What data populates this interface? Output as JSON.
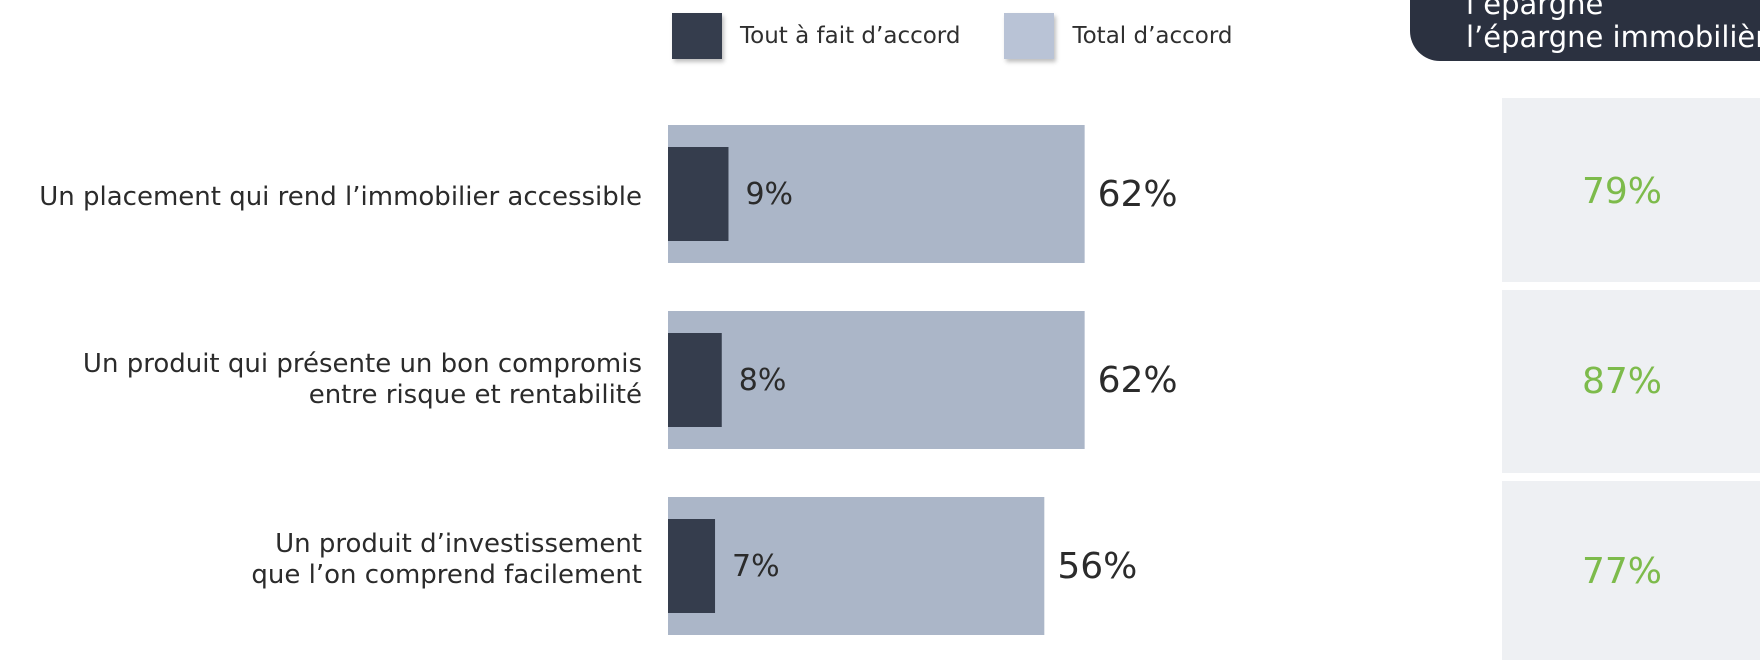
{
  "legend": {
    "items": [
      {
        "label": "Tout à fait d’accord",
        "color": "#353d4d"
      },
      {
        "label": "Total d’accord",
        "color": "#b9c3d6"
      }
    ]
  },
  "header": {
    "line1": "l’épargne",
    "line2": "l’épargne immobilière"
  },
  "colors": {
    "strong": "#353d4d",
    "total": "#abb6c8",
    "side_value": "#7dbb4b",
    "panel": "#eef0f3"
  },
  "chart_data": {
    "type": "bar",
    "orientation": "horizontal",
    "categories": [
      "Un placement qui rend l’immobilier accessible",
      "Un produit qui présente un bon compromis entre risque et rentabilité",
      "Un produit d’investissement que l’on comprend facilement"
    ],
    "category_lines": [
      [
        "Un placement qui rend l’immobilier accessible"
      ],
      [
        "Un produit qui présente un bon compromis",
        "entre risque et rentabilité"
      ],
      [
        "Un produit d’investissement",
        "que l’on comprend facilement"
      ]
    ],
    "series": [
      {
        "name": "Tout à fait d’accord",
        "values": [
          9,
          8,
          7
        ],
        "labels": [
          "9%",
          "8%",
          "7%"
        ]
      },
      {
        "name": "Total d’accord",
        "values": [
          62,
          62,
          56
        ],
        "labels": [
          "62%",
          "62%",
          "56%"
        ]
      }
    ],
    "side_values": [
      "79%",
      "87%",
      "77%"
    ],
    "xlim": [
      0,
      100
    ]
  }
}
